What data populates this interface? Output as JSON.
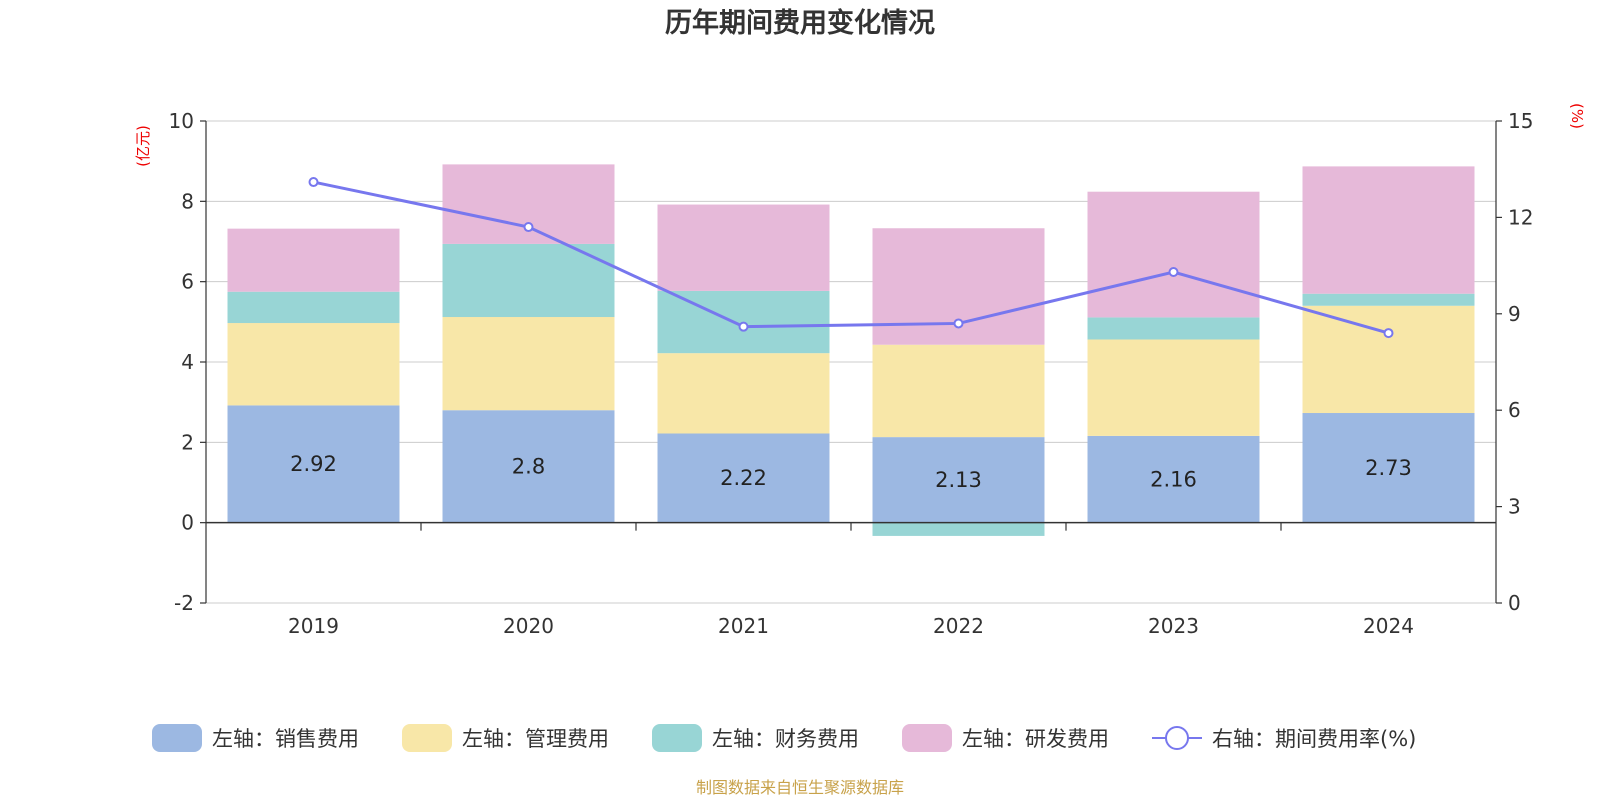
{
  "chart_data": {
    "type": "bar",
    "stacked": true,
    "title": "历年期间费用变化情况",
    "categories": [
      "2019",
      "2020",
      "2021",
      "2022",
      "2023",
      "2024"
    ],
    "left_axis": {
      "unit": "(亿元)",
      "ticks": [
        "10",
        "8",
        "6",
        "4",
        "2",
        "0",
        "-2"
      ],
      "ylim": [
        -2,
        10
      ]
    },
    "right_axis": {
      "unit": "(%)",
      "ticks": [
        "15",
        "12",
        "9",
        "6",
        "3",
        "0"
      ],
      "ylim": [
        0,
        15
      ]
    },
    "series": [
      {
        "name": "左轴：销售费用",
        "color": "#9cb8e2",
        "axis": "left",
        "values": [
          2.92,
          2.8,
          2.22,
          2.13,
          2.16,
          2.73
        ],
        "labels": [
          "2.92",
          "2.8",
          "2.22",
          "2.13",
          "2.16",
          "2.73"
        ]
      },
      {
        "name": "左轴：管理费用",
        "color": "#f8e7a8",
        "axis": "left",
        "values": [
          2.05,
          2.32,
          2.0,
          2.3,
          2.4,
          2.67
        ]
      },
      {
        "name": "左轴：财务费用",
        "color": "#98d5d5",
        "axis": "left",
        "values": [
          0.78,
          1.82,
          1.55,
          -0.33,
          0.55,
          0.3
        ]
      },
      {
        "name": "左轴：研发费用",
        "color": "#e6b9d9",
        "axis": "left",
        "values": [
          1.57,
          1.98,
          2.15,
          2.9,
          3.13,
          3.17
        ]
      }
    ],
    "line_series": {
      "name": "右轴：期间费用率(%)",
      "color": "#7777ee",
      "axis": "right",
      "values": [
        13.1,
        11.7,
        8.6,
        8.7,
        10.3,
        8.4
      ]
    },
    "legend_position": "bottom",
    "grid": true,
    "source": "制图数据来自恒生聚源数据库",
    "colors": {
      "unit_label": "#ee0000",
      "source": "#c8a24a",
      "axis": "#333333",
      "grid": "#cccccc"
    }
  }
}
